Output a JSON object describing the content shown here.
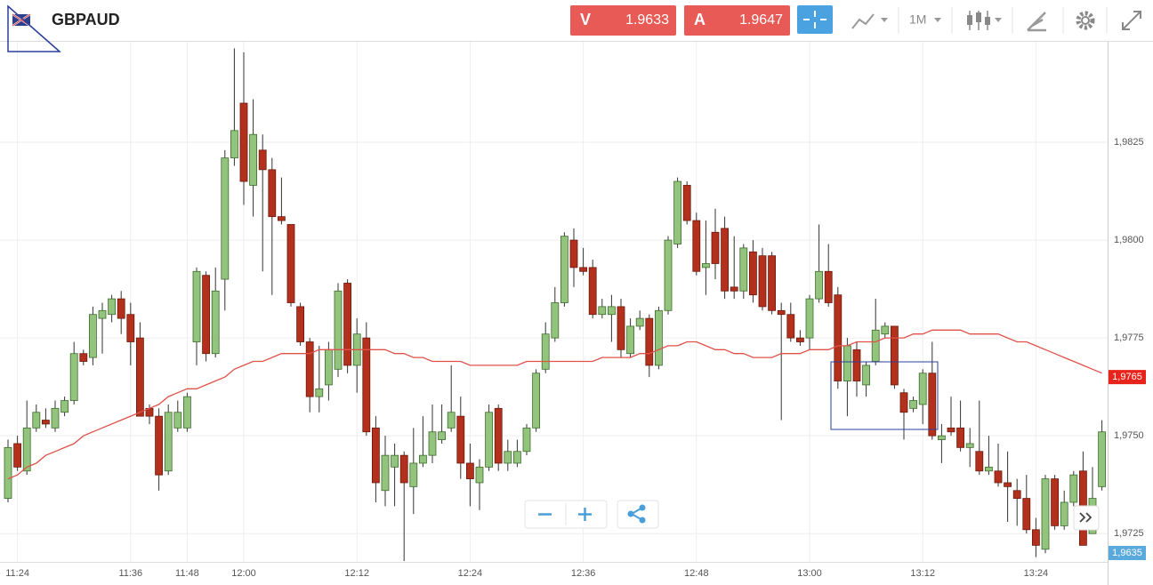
{
  "toolbar": {
    "symbol": "GBPAUD",
    "sell_label": "V",
    "sell_price": 1.9633,
    "buy_label": "A",
    "buy_price": 1.9647,
    "period": "1M"
  },
  "chart_data": {
    "type": "candlestick",
    "categories": [
      null,
      "11:24",
      null,
      null,
      null,
      null,
      null,
      null,
      null,
      null,
      null,
      null,
      null,
      "11:36",
      null,
      null,
      null,
      null,
      null,
      "11:48",
      null,
      null,
      null,
      null,
      null,
      "12:00",
      null,
      null,
      null,
      null,
      null,
      null,
      null,
      null,
      null,
      null,
      null,
      "12:12",
      null,
      null,
      null,
      null,
      null,
      null,
      null,
      null,
      null,
      null,
      null,
      "12:24",
      null,
      null,
      null,
      null,
      null,
      null,
      null,
      null,
      null,
      null,
      null,
      "12:36",
      null,
      null,
      null,
      null,
      null,
      null,
      null,
      null,
      null,
      null,
      null,
      "12:48",
      null,
      null,
      null,
      null,
      null,
      null,
      null,
      null,
      null,
      null,
      null,
      "13:00",
      null,
      null,
      null,
      null,
      null,
      null,
      null,
      null,
      null,
      null,
      null,
      "13:12",
      null,
      null,
      null,
      null,
      null,
      null,
      null,
      null,
      null,
      null,
      null,
      "13:24",
      null,
      null,
      null,
      null,
      null,
      null,
      null
    ],
    "open": [
      1.9734,
      1.9748,
      1.9741,
      1.9752,
      1.9754,
      1.9752,
      1.9756,
      1.9759,
      1.9771,
      1.977,
      1.978,
      1.9781,
      1.9785,
      1.9781,
      1.9775,
      1.9757,
      1.9755,
      1.9741,
      1.9752,
      1.9752,
      1.9774,
      1.9791,
      1.9771,
      1.979,
      1.9821,
      1.9835,
      1.9814,
      1.9823,
      1.9818,
      1.9806,
      1.9804,
      1.9783,
      1.9774,
      1.976,
      1.9763,
      1.9767,
      1.9789,
      1.9768,
      1.9775,
      1.9752,
      1.9736,
      1.9742,
      1.9745,
      1.9737,
      1.9743,
      1.9745,
      1.9749,
      1.9752,
      1.9755,
      1.9743,
      1.9738,
      1.9742,
      1.9757,
      1.9743,
      1.9743,
      1.9746,
      1.9752,
      1.9767,
      1.9775,
      1.9784,
      1.98,
      1.9793,
      1.9793,
      1.9781,
      1.9781,
      1.9783,
      1.9771,
      1.9778,
      1.978,
      1.9768,
      1.9782,
      1.9799,
      1.9814,
      1.9805,
      1.9793,
      1.9802,
      1.9803,
      1.9788,
      1.9787,
      1.9797,
      1.9796,
      1.9796,
      1.9782,
      1.9781,
      1.9775,
      1.9775,
      1.9785,
      1.9792,
      1.9786,
      1.9764,
      1.9772,
      1.9763,
      1.9769,
      1.9776,
      1.9778,
      1.9761,
      1.9757,
      1.9758,
      1.9766,
      1.9749,
      1.9752,
      1.9752,
      1.9747,
      1.9746,
      1.9741,
      1.9741,
      1.9738,
      1.9736,
      1.9734,
      1.9726,
      1.9721,
      1.9739,
      1.9727,
      1.9733,
      1.9741,
      1.9725,
      1.9737
    ],
    "high": [
      1.9749,
      1.975,
      1.9759,
      1.9758,
      1.9757,
      1.9759,
      1.976,
      1.9774,
      1.9772,
      1.9783,
      1.9784,
      1.9786,
      1.9787,
      1.9784,
      1.9779,
      1.9758,
      1.9757,
      1.9758,
      1.9759,
      1.9761,
      1.9793,
      1.9792,
      1.9793,
      1.9823,
      1.9849,
      1.9848,
      1.9836,
      1.9827,
      1.9821,
      1.9816,
      1.9804,
      1.9784,
      1.9775,
      1.9773,
      1.9774,
      1.9789,
      1.979,
      1.978,
      1.9779,
      1.9755,
      1.975,
      1.9748,
      1.9746,
      1.9752,
      1.9755,
      1.9758,
      1.9758,
      1.9768,
      1.976,
      1.9748,
      1.9744,
      1.9758,
      1.9758,
      1.9749,
      1.9749,
      1.9753,
      1.9767,
      1.9779,
      1.9788,
      1.9802,
      1.9803,
      1.9798,
      1.9795,
      1.9785,
      1.9786,
      1.9785,
      1.978,
      1.9782,
      1.9781,
      1.9783,
      1.9801,
      1.9816,
      1.9815,
      1.9807,
      1.9805,
      1.9808,
      1.9806,
      1.9801,
      1.9799,
      1.98,
      1.9798,
      1.9797,
      1.9784,
      1.9784,
      1.9777,
      1.9786,
      1.9804,
      1.9799,
      1.9788,
      1.9775,
      1.9774,
      1.9769,
      1.9785,
      1.9779,
      1.9778,
      1.9762,
      1.976,
      1.9767,
      1.9774,
      1.9753,
      1.976,
      1.9759,
      1.9752,
      1.9759,
      1.975,
      1.9748,
      1.9746,
      1.9739,
      1.974,
      1.9729,
      1.974,
      1.974,
      1.9736,
      1.9741,
      1.9746,
      1.9742,
      1.9754
    ],
    "low": [
      1.9733,
      1.9741,
      1.974,
      1.9751,
      1.9752,
      1.9751,
      1.9755,
      1.9758,
      1.9768,
      1.9768,
      1.9771,
      1.9779,
      1.9776,
      1.9768,
      1.9755,
      1.9753,
      1.9736,
      1.974,
      1.9751,
      1.9751,
      1.9768,
      1.9769,
      1.977,
      1.9782,
      1.9819,
      1.9809,
      1.9806,
      1.9792,
      1.9786,
      1.9804,
      1.9783,
      1.9773,
      1.9756,
      1.9756,
      1.9759,
      1.9765,
      1.9766,
      1.9761,
      1.975,
      1.9733,
      1.9732,
      1.9732,
      1.9718,
      1.973,
      1.9742,
      1.9743,
      1.9748,
      1.9751,
      1.9739,
      1.9732,
      1.9731,
      1.9741,
      1.9741,
      1.9741,
      1.9742,
      1.9745,
      1.9751,
      1.9766,
      1.9774,
      1.9783,
      1.9788,
      1.9791,
      1.978,
      1.978,
      1.9774,
      1.977,
      1.977,
      1.9777,
      1.9765,
      1.9767,
      1.9781,
      1.9798,
      1.9804,
      1.9791,
      1.9786,
      1.979,
      1.9785,
      1.9785,
      1.9785,
      1.9784,
      1.9782,
      1.9781,
      1.9754,
      1.9774,
      1.9773,
      1.9772,
      1.9784,
      1.9783,
      1.9762,
      1.9755,
      1.976,
      1.976,
      1.9768,
      1.9775,
      1.9762,
      1.9749,
      1.9756,
      1.9753,
      1.9749,
      1.9743,
      1.975,
      1.9746,
      1.9742,
      1.974,
      1.974,
      1.9737,
      1.9728,
      1.9727,
      1.9725,
      1.9719,
      1.972,
      1.9726,
      1.9726,
      1.9732,
      1.9722,
      1.9725,
      1.9736
    ],
    "close": [
      1.9747,
      1.9742,
      1.9752,
      1.9756,
      1.9753,
      1.9757,
      1.9759,
      1.9771,
      1.9769,
      1.9781,
      1.9782,
      1.9785,
      1.978,
      1.9774,
      1.9755,
      1.9755,
      1.974,
      1.9756,
      1.9756,
      1.976,
      1.9792,
      1.9771,
      1.9787,
      1.9821,
      1.9828,
      1.9815,
      1.9827,
      1.9818,
      1.9806,
      1.9805,
      1.9784,
      1.9774,
      1.976,
      1.9762,
      1.9772,
      1.9787,
      1.9768,
      1.9776,
      1.9751,
      1.9738,
      1.9745,
      1.9745,
      1.9738,
      1.9743,
      1.9745,
      1.9751,
      1.9751,
      1.9756,
      1.9743,
      1.9739,
      1.9742,
      1.9756,
      1.9743,
      1.9746,
      1.9746,
      1.9752,
      1.9766,
      1.9776,
      1.9784,
      1.9801,
      1.9793,
      1.9792,
      1.9781,
      1.9783,
      1.9783,
      1.9772,
      1.9778,
      1.978,
      1.9768,
      1.9782,
      1.98,
      1.9815,
      1.9805,
      1.9792,
      1.9794,
      1.9794,
      1.9787,
      1.9787,
      1.9798,
      1.9786,
      1.9783,
      1.9782,
      1.9781,
      1.9775,
      1.9774,
      1.9785,
      1.9792,
      1.9784,
      1.9764,
      1.9773,
      1.9764,
      1.9768,
      1.9777,
      1.9778,
      1.9763,
      1.9756,
      1.9759,
      1.9766,
      1.975,
      1.975,
      1.9751,
      1.9747,
      1.9748,
      1.9741,
      1.9742,
      1.9738,
      1.9737,
      1.9734,
      1.9726,
      1.9722,
      1.9739,
      1.9727,
      1.9733,
      1.974,
      1.9722,
      1.9734,
      1.9751
    ],
    "overlay": {
      "color": "#e0514a",
      "values": [
        1.9739,
        1.974,
        1.9742,
        1.9743,
        1.9745,
        1.9746,
        1.9747,
        1.9748,
        1.975,
        1.9751,
        1.9752,
        1.9753,
        1.9754,
        1.9755,
        1.9756,
        1.9757,
        1.9758,
        1.976,
        1.9761,
        1.9762,
        1.9762,
        1.9763,
        1.9764,
        1.9765,
        1.9767,
        1.9768,
        1.9769,
        1.9769,
        1.977,
        1.9771,
        1.9771,
        1.9771,
        1.9771,
        1.9772,
        1.9772,
        1.9772,
        1.9772,
        1.9772,
        1.9772,
        1.9772,
        1.9772,
        1.9771,
        1.9771,
        1.977,
        1.977,
        1.9769,
        1.9769,
        1.9769,
        1.9769,
        1.9768,
        1.9768,
        1.9768,
        1.9768,
        1.9768,
        1.9768,
        1.9769,
        1.9769,
        1.9769,
        1.9769,
        1.9769,
        1.9769,
        1.9769,
        1.9769,
        1.977,
        1.977,
        1.977,
        1.977,
        1.9771,
        1.9771,
        1.9772,
        1.9773,
        1.9773,
        1.9774,
        1.9774,
        1.9773,
        1.9772,
        1.9772,
        1.9771,
        1.9771,
        1.977,
        1.977,
        1.977,
        1.9771,
        1.9771,
        1.9771,
        1.9772,
        1.9772,
        1.9772,
        1.9773,
        1.9773,
        1.9774,
        1.9774,
        1.9774,
        1.9775,
        1.9775,
        1.9775,
        1.9776,
        1.9776,
        1.9777,
        1.9777,
        1.9777,
        1.9777,
        1.9776,
        1.9776,
        1.9776,
        1.9776,
        1.9775,
        1.9774,
        1.9774,
        1.9773,
        1.9772,
        1.9771,
        1.977,
        1.9769,
        1.9768,
        1.9767,
        1.9766
      ]
    },
    "up_color": "#93c47d",
    "down_color": "#b3311c",
    "ylim": [
      1.9718,
      1.985
    ],
    "yticks": [
      {
        "value": 1.9725,
        "label": "1,9725"
      },
      {
        "value": 1.975,
        "label": "1,9750"
      },
      {
        "value": 1.9775,
        "label": "1,9775"
      },
      {
        "value": 1.98,
        "label": "1,9800"
      },
      {
        "value": 1.9825,
        "label": "1,9825"
      }
    ],
    "price_markers": [
      {
        "value": 1.9765,
        "label": "1,9765",
        "color": "#e8231b"
      },
      {
        "value": 1.9635,
        "label": "1,9635",
        "color": "#5aa9dc"
      }
    ],
    "grid": true
  }
}
